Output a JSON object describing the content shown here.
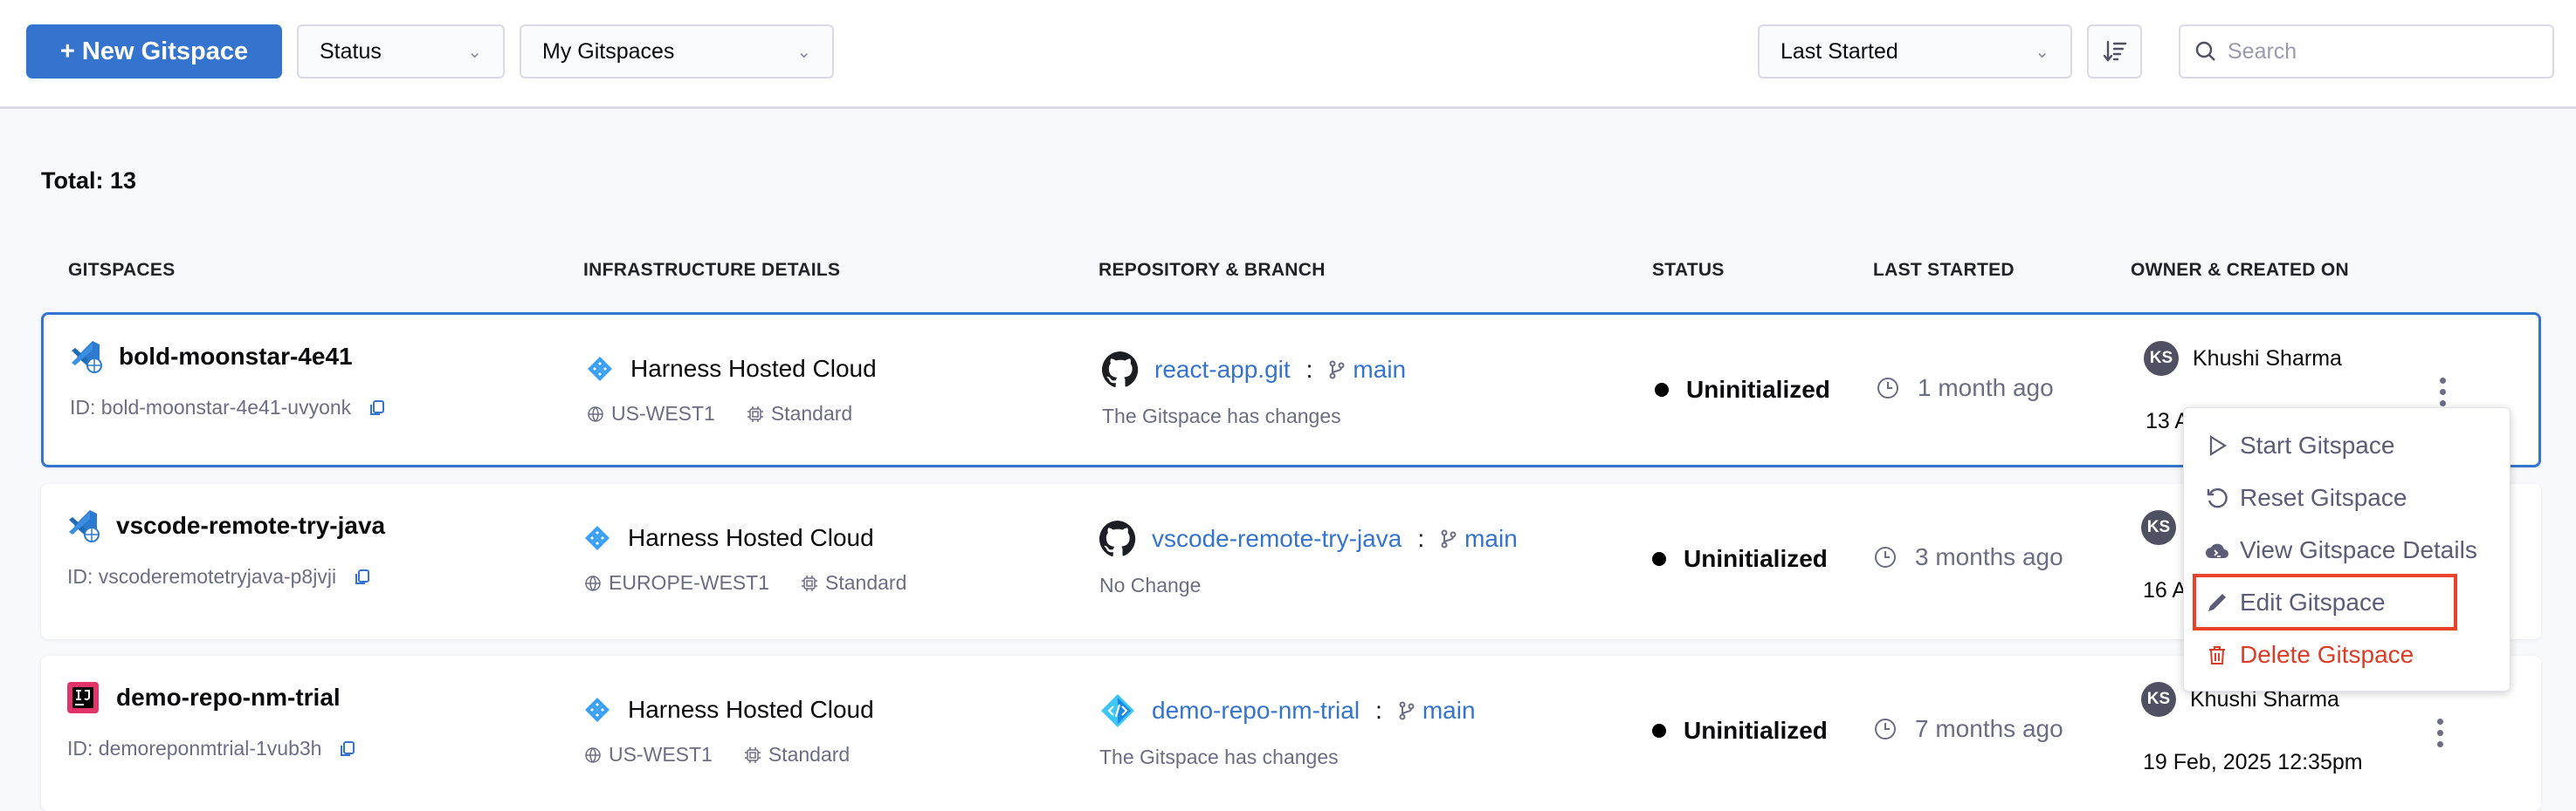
{
  "toolbar": {
    "new_button": "+ New Gitspace",
    "status_filter": "Status",
    "owner_filter": "My Gitspaces",
    "sort_select": "Last Started",
    "search_placeholder": "Search"
  },
  "total": "Total: 13",
  "columns": [
    "GITSPACES",
    "INFRASTRUCTURE DETAILS",
    "REPOSITORY & BRANCH",
    "STATUS",
    "LAST STARTED",
    "OWNER & CREATED ON"
  ],
  "rows": [
    {
      "ide": "vscode",
      "name": "bold-moonstar-4e41",
      "id": "ID: bold-moonstar-4e41-uvyonk",
      "infra": "Harness Hosted Cloud",
      "region": "US-WEST1",
      "machine": "Standard",
      "repo_icon": "github",
      "repo": "react-app.git",
      "sep": ":",
      "branch": "main",
      "repo_note": "The Gitspace has changes",
      "status": "Uninitialized",
      "last_started": "1 month ago",
      "owner_initials": "KS",
      "owner": "Khushi Sharma",
      "created": "13 A"
    },
    {
      "ide": "vscode",
      "name": "vscode-remote-try-java",
      "id": "ID: vscoderemotetryjava-p8jvji",
      "infra": "Harness Hosted Cloud",
      "region": "EUROPE-WEST1",
      "machine": "Standard",
      "repo_icon": "github",
      "repo": "vscode-remote-try-java",
      "sep": ":",
      "branch": "main",
      "repo_note": "No Change",
      "status": "Uninitialized",
      "last_started": "3 months ago",
      "owner_initials": "KS",
      "owner": "",
      "created": "16 A"
    },
    {
      "ide": "intellij",
      "name": "demo-repo-nm-trial",
      "id": "ID: demoreponmtrial-1vub3h",
      "infra": "Harness Hosted Cloud",
      "region": "US-WEST1",
      "machine": "Standard",
      "repo_icon": "harness-code",
      "repo": "demo-repo-nm-trial",
      "sep": ":",
      "branch": "main",
      "repo_note": "The Gitspace has changes",
      "status": "Uninitialized",
      "last_started": "7 months ago",
      "owner_initials": "KS",
      "owner": "Khushi Sharma",
      "created": "19 Feb, 2025 12:35pm"
    }
  ],
  "context_menu": {
    "items": [
      {
        "label": "Start Gitspace",
        "icon": "play"
      },
      {
        "label": "Reset Gitspace",
        "icon": "reset"
      },
      {
        "label": "View Gitspace Details",
        "icon": "cloud-terminal"
      },
      {
        "label": "Edit Gitspace",
        "icon": "pencil",
        "highlighted": true
      },
      {
        "label": "Delete Gitspace",
        "icon": "trash",
        "danger": true
      }
    ]
  },
  "colors": {
    "primary": "#3474cf",
    "danger": "#dc3b26",
    "highlight": "#e8432a"
  }
}
